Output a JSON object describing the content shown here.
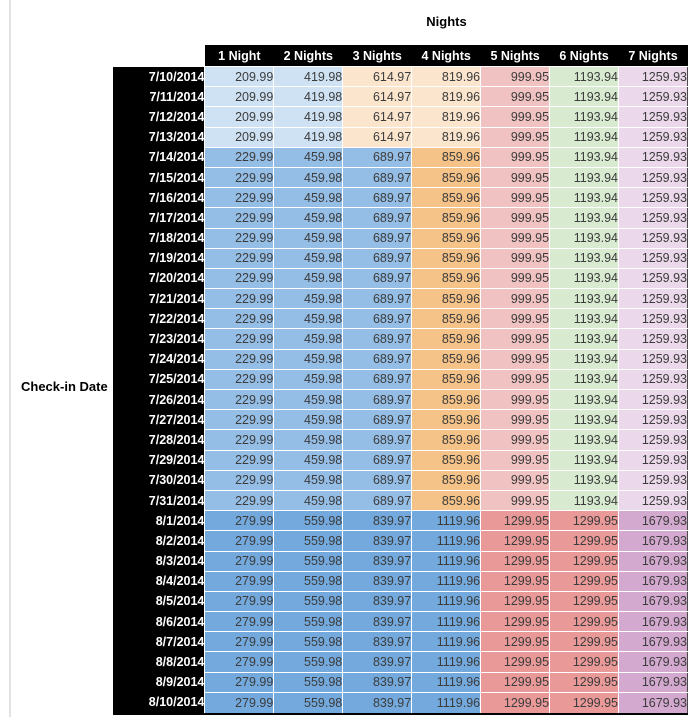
{
  "styles": {
    "palette": {
      "lightBlue": "#cfe2f3",
      "lightOrange": "#fce5cd",
      "medBlue": "#95bee6",
      "medOrange": "#f5c288",
      "pink": "#f0c2c1",
      "green": "#d8ebd1",
      "lavender": "#ebd8ea",
      "darkBlue": "#73a9dc",
      "red": "#ea9999",
      "purple": "#d4a9cf"
    },
    "bands": {
      "A": [
        "lightBlue",
        "lightBlue",
        "lightOrange",
        "lightOrange",
        "pink",
        "green",
        "lavender"
      ],
      "B": [
        "medBlue",
        "medBlue",
        "medBlue",
        "medOrange",
        "pink",
        "green",
        "lavender"
      ],
      "C": [
        "darkBlue",
        "darkBlue",
        "darkBlue",
        "darkBlue",
        "red",
        "red",
        "purple"
      ]
    },
    "header_bg": "#000000",
    "header_text": "#ffffff",
    "value_text": "#3c3c3c"
  },
  "chart_data": {
    "type": "table",
    "title": "Nights",
    "row_axis_label": "Check-in Date",
    "columns": [
      "1 Night",
      "2 Nights",
      "3 Nights",
      "4 Nights",
      "5 Nights",
      "6 Nights",
      "7 Nights"
    ],
    "rows": [
      {
        "date": "7/10/2014",
        "band": "A",
        "values": [
          209.99,
          419.98,
          614.97,
          819.96,
          999.95,
          1193.94,
          1259.93
        ]
      },
      {
        "date": "7/11/2014",
        "band": "A",
        "values": [
          209.99,
          419.98,
          614.97,
          819.96,
          999.95,
          1193.94,
          1259.93
        ]
      },
      {
        "date": "7/12/2014",
        "band": "A",
        "values": [
          209.99,
          419.98,
          614.97,
          819.96,
          999.95,
          1193.94,
          1259.93
        ]
      },
      {
        "date": "7/13/2014",
        "band": "A",
        "values": [
          209.99,
          419.98,
          614.97,
          819.96,
          999.95,
          1193.94,
          1259.93
        ]
      },
      {
        "date": "7/14/2014",
        "band": "B",
        "values": [
          229.99,
          459.98,
          689.97,
          859.96,
          999.95,
          1193.94,
          1259.93
        ]
      },
      {
        "date": "7/15/2014",
        "band": "B",
        "values": [
          229.99,
          459.98,
          689.97,
          859.96,
          999.95,
          1193.94,
          1259.93
        ]
      },
      {
        "date": "7/16/2014",
        "band": "B",
        "values": [
          229.99,
          459.98,
          689.97,
          859.96,
          999.95,
          1193.94,
          1259.93
        ]
      },
      {
        "date": "7/17/2014",
        "band": "B",
        "values": [
          229.99,
          459.98,
          689.97,
          859.96,
          999.95,
          1193.94,
          1259.93
        ]
      },
      {
        "date": "7/18/2014",
        "band": "B",
        "values": [
          229.99,
          459.98,
          689.97,
          859.96,
          999.95,
          1193.94,
          1259.93
        ]
      },
      {
        "date": "7/19/2014",
        "band": "B",
        "values": [
          229.99,
          459.98,
          689.97,
          859.96,
          999.95,
          1193.94,
          1259.93
        ]
      },
      {
        "date": "7/20/2014",
        "band": "B",
        "values": [
          229.99,
          459.98,
          689.97,
          859.96,
          999.95,
          1193.94,
          1259.93
        ]
      },
      {
        "date": "7/21/2014",
        "band": "B",
        "values": [
          229.99,
          459.98,
          689.97,
          859.96,
          999.95,
          1193.94,
          1259.93
        ]
      },
      {
        "date": "7/22/2014",
        "band": "B",
        "values": [
          229.99,
          459.98,
          689.97,
          859.96,
          999.95,
          1193.94,
          1259.93
        ]
      },
      {
        "date": "7/23/2014",
        "band": "B",
        "values": [
          229.99,
          459.98,
          689.97,
          859.96,
          999.95,
          1193.94,
          1259.93
        ]
      },
      {
        "date": "7/24/2014",
        "band": "B",
        "values": [
          229.99,
          459.98,
          689.97,
          859.96,
          999.95,
          1193.94,
          1259.93
        ]
      },
      {
        "date": "7/25/2014",
        "band": "B",
        "values": [
          229.99,
          459.98,
          689.97,
          859.96,
          999.95,
          1193.94,
          1259.93
        ]
      },
      {
        "date": "7/26/2014",
        "band": "B",
        "values": [
          229.99,
          459.98,
          689.97,
          859.96,
          999.95,
          1193.94,
          1259.93
        ]
      },
      {
        "date": "7/27/2014",
        "band": "B",
        "values": [
          229.99,
          459.98,
          689.97,
          859.96,
          999.95,
          1193.94,
          1259.93
        ]
      },
      {
        "date": "7/28/2014",
        "band": "B",
        "values": [
          229.99,
          459.98,
          689.97,
          859.96,
          999.95,
          1193.94,
          1259.93
        ]
      },
      {
        "date": "7/29/2014",
        "band": "B",
        "values": [
          229.99,
          459.98,
          689.97,
          859.96,
          999.95,
          1193.94,
          1259.93
        ]
      },
      {
        "date": "7/30/2014",
        "band": "B",
        "values": [
          229.99,
          459.98,
          689.97,
          859.96,
          999.95,
          1193.94,
          1259.93
        ]
      },
      {
        "date": "7/31/2014",
        "band": "B",
        "values": [
          229.99,
          459.98,
          689.97,
          859.96,
          999.95,
          1193.94,
          1259.93
        ]
      },
      {
        "date": "8/1/2014",
        "band": "C",
        "values": [
          279.99,
          559.98,
          839.97,
          1119.96,
          1299.95,
          1299.95,
          1679.93
        ]
      },
      {
        "date": "8/2/2014",
        "band": "C",
        "values": [
          279.99,
          559.98,
          839.97,
          1119.96,
          1299.95,
          1299.95,
          1679.93
        ]
      },
      {
        "date": "8/3/2014",
        "band": "C",
        "values": [
          279.99,
          559.98,
          839.97,
          1119.96,
          1299.95,
          1299.95,
          1679.93
        ]
      },
      {
        "date": "8/4/2014",
        "band": "C",
        "values": [
          279.99,
          559.98,
          839.97,
          1119.96,
          1299.95,
          1299.95,
          1679.93
        ]
      },
      {
        "date": "8/5/2014",
        "band": "C",
        "values": [
          279.99,
          559.98,
          839.97,
          1119.96,
          1299.95,
          1299.95,
          1679.93
        ]
      },
      {
        "date": "8/6/2014",
        "band": "C",
        "values": [
          279.99,
          559.98,
          839.97,
          1119.96,
          1299.95,
          1299.95,
          1679.93
        ]
      },
      {
        "date": "8/7/2014",
        "band": "C",
        "values": [
          279.99,
          559.98,
          839.97,
          1119.96,
          1299.95,
          1299.95,
          1679.93
        ]
      },
      {
        "date": "8/8/2014",
        "band": "C",
        "values": [
          279.99,
          559.98,
          839.97,
          1119.96,
          1299.95,
          1299.95,
          1679.93
        ]
      },
      {
        "date": "8/9/2014",
        "band": "C",
        "values": [
          279.99,
          559.98,
          839.97,
          1119.96,
          1299.95,
          1299.95,
          1679.93
        ]
      },
      {
        "date": "8/10/2014",
        "band": "C",
        "values": [
          279.99,
          559.98,
          839.97,
          1119.96,
          1299.95,
          1299.95,
          1679.93
        ]
      }
    ]
  }
}
